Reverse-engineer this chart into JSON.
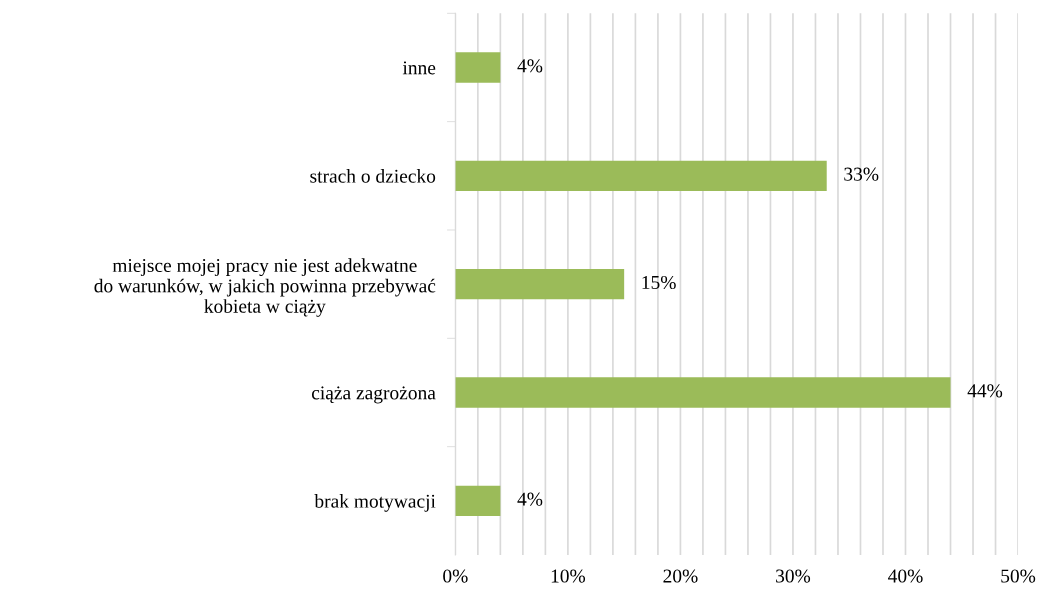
{
  "chart_data": {
    "type": "bar",
    "orientation": "horizontal",
    "categories": [
      "inne",
      "strach o dziecko",
      "miejsce mojej pracy nie jest adekwatne\ndo warunków, w jakich powinna przebywać\nkobieta w ciąży",
      "ciąża zagrożona",
      "brak motywacji"
    ],
    "values": [
      4,
      33,
      15,
      44,
      4
    ],
    "value_labels": [
      "4%",
      "33%",
      "15%",
      "44%",
      "4%"
    ],
    "color": "#9bbb59",
    "xlim": [
      0,
      50
    ],
    "xticks": [
      {
        "value": 0,
        "label": "0%"
      },
      {
        "value": 2,
        "label": null
      },
      {
        "value": 4,
        "label": null
      },
      {
        "value": 6,
        "label": null
      },
      {
        "value": 8,
        "label": null
      },
      {
        "value": 10,
        "label": "10%"
      },
      {
        "value": 12,
        "label": null
      },
      {
        "value": 14,
        "label": null
      },
      {
        "value": 16,
        "label": null
      },
      {
        "value": 18,
        "label": null
      },
      {
        "value": 20,
        "label": "20%"
      },
      {
        "value": 22,
        "label": null
      },
      {
        "value": 24,
        "label": null
      },
      {
        "value": 26,
        "label": null
      },
      {
        "value": 28,
        "label": null
      },
      {
        "value": 30,
        "label": "30%"
      },
      {
        "value": 32,
        "label": null
      },
      {
        "value": 34,
        "label": null
      },
      {
        "value": 36,
        "label": null
      },
      {
        "value": 38,
        "label": null
      },
      {
        "value": 40,
        "label": "40%"
      },
      {
        "value": 42,
        "label": null
      },
      {
        "value": 44,
        "label": null
      },
      {
        "value": 46,
        "label": null
      },
      {
        "value": 48,
        "label": null
      },
      {
        "value": 50,
        "label": "50%"
      }
    ],
    "grid": "x",
    "legend": false
  }
}
